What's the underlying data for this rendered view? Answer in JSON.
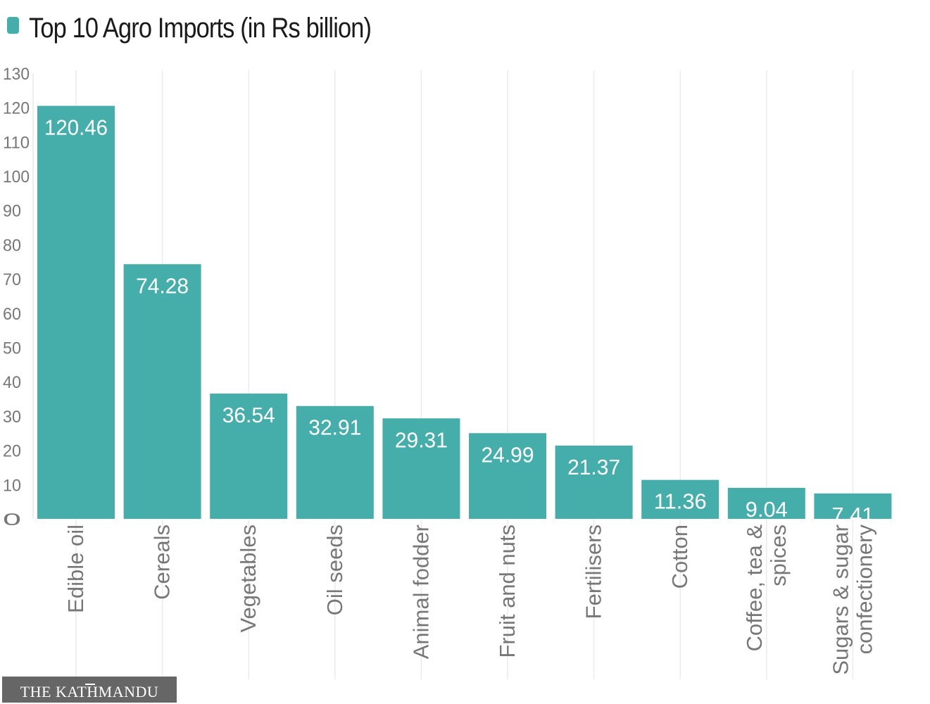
{
  "chart_data": {
    "type": "bar",
    "title": "Top 10 Agro Imports (in Rs billion)",
    "categories": [
      [
        "Edible oil"
      ],
      [
        "Cereals"
      ],
      [
        "Vegetables"
      ],
      [
        "Oil seeds"
      ],
      [
        "Animal fodder"
      ],
      [
        "Fruit and nuts"
      ],
      [
        "Fertilisers"
      ],
      [
        "Cotton"
      ],
      [
        "Coffee, tea &",
        "spices"
      ],
      [
        "Sugars & sugar",
        "confectionery"
      ]
    ],
    "values": [
      120.46,
      74.28,
      36.54,
      32.91,
      29.31,
      24.99,
      21.37,
      11.36,
      9.04,
      7.41
    ],
    "data_labels": [
      "120.46",
      "74.28",
      "36.54",
      "32.91",
      "29.31",
      "24.99",
      "21.37",
      "11.36",
      "9.04",
      "7.41"
    ],
    "yticks": [
      0,
      10,
      20,
      30,
      40,
      50,
      60,
      70,
      80,
      90,
      100,
      110,
      120,
      130
    ],
    "ylim": [
      0,
      130
    ],
    "xlabel": "",
    "ylabel": "",
    "grid": "vertical",
    "legend": "none",
    "bar_color": "#45aeaa"
  },
  "branding": {
    "logo_text": "THE KATHMANDU POST"
  }
}
